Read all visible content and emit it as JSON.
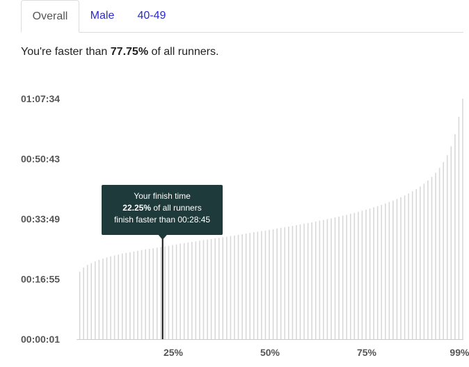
{
  "tabs": [
    {
      "label": "Overall",
      "active": true
    },
    {
      "label": "Male",
      "active": false
    },
    {
      "label": "40-49",
      "active": false
    }
  ],
  "summary": {
    "prefix": "You're faster than ",
    "percent": "77.75%",
    "suffix": " of all runners."
  },
  "tooltip": {
    "line1": "Your finish time",
    "line2_percent": "22.25%",
    "line2_rest": " of all runners",
    "line3": "finish faster than 00:28:45"
  },
  "colors": {
    "bar": "#d8d8d8",
    "marker": "#111111",
    "tooltip_bg": "#1f3a3a",
    "tab_link": "#2a2acc"
  },
  "chart_data": {
    "type": "bar",
    "title": "",
    "xlabel": "",
    "ylabel": "",
    "y_ticks": [
      "00:00:01",
      "00:16:55",
      "00:33:49",
      "00:50:43",
      "01:07:34"
    ],
    "y_tick_seconds": [
      1,
      1015,
      2029,
      3043,
      4054
    ],
    "x_ticks": [
      "25%",
      "50%",
      "75%",
      "99%"
    ],
    "x_tick_percent": [
      25,
      50,
      75,
      99
    ],
    "x_range_percent": [
      0,
      100
    ],
    "y_range_seconds": [
      1,
      4054
    ],
    "marker_percent": 22.25,
    "marker_value_seconds": 1725,
    "percentile_values_seconds": [
      1140,
      1209,
      1254,
      1284,
      1311,
      1338,
      1359,
      1380,
      1398,
      1413,
      1428,
      1443,
      1455,
      1467,
      1479,
      1491,
      1503,
      1512,
      1524,
      1533,
      1545,
      1554,
      1566,
      1575,
      1587,
      1599,
      1611,
      1620,
      1632,
      1641,
      1650,
      1662,
      1671,
      1680,
      1689,
      1701,
      1710,
      1719,
      1728,
      1740,
      1749,
      1761,
      1770,
      1782,
      1791,
      1803,
      1812,
      1824,
      1833,
      1845,
      1854,
      1866,
      1878,
      1887,
      1899,
      1911,
      1923,
      1935,
      1947,
      1959,
      1971,
      1983,
      1998,
      2010,
      2025,
      2037,
      2052,
      2067,
      2082,
      2097,
      2115,
      2130,
      2148,
      2166,
      2184,
      2202,
      2223,
      2244,
      2265,
      2289,
      2313,
      2337,
      2364,
      2394,
      2424,
      2457,
      2493,
      2532,
      2574,
      2622,
      2676,
      2736,
      2805,
      2889,
      2985,
      3102,
      3252,
      3456,
      3750,
      4054
    ]
  }
}
